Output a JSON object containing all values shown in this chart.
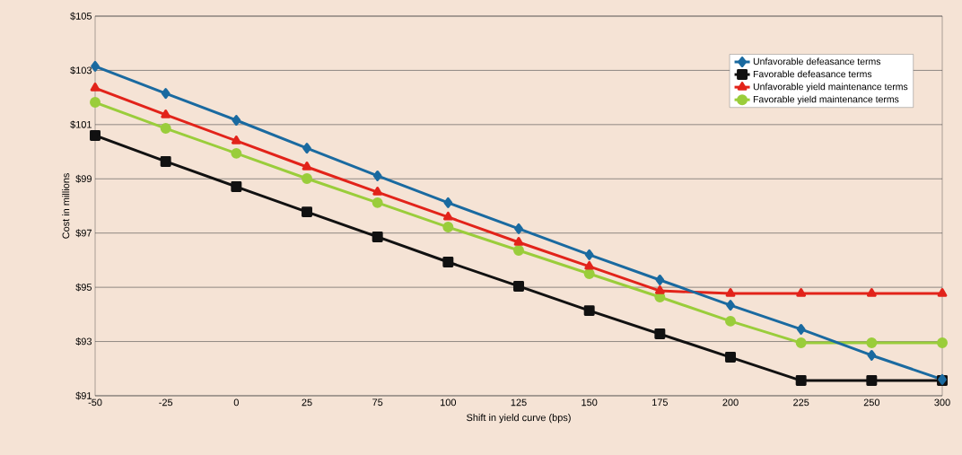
{
  "chart_data": {
    "type": "line",
    "xlabel": "Shift in yield curve (bps)",
    "ylabel": "Cost in millions",
    "categories": [
      "-50",
      "-25",
      "0",
      "25",
      "75",
      "100",
      "125",
      "150",
      "175",
      "200",
      "225",
      "250",
      "300"
    ],
    "ylim": [
      91,
      105
    ],
    "yticks": [
      {
        "value": 91,
        "label": "$91"
      },
      {
        "value": 93,
        "label": "$93"
      },
      {
        "value": 95,
        "label": "$95"
      },
      {
        "value": 97,
        "label": "$97"
      },
      {
        "value": 99,
        "label": "$99"
      },
      {
        "value": 101,
        "label": "$101"
      },
      {
        "value": 103,
        "label": "$103"
      },
      {
        "value": 105,
        "label": "$105"
      }
    ],
    "grid": "y",
    "legend": "top right",
    "line_style": "solid",
    "series": [
      {
        "name": "Unfavorable defeasance terms",
        "color": "#1a6aa0",
        "marker": "diamond",
        "values": [
          103.15,
          102.15,
          101.16,
          100.13,
          99.11,
          98.12,
          97.16,
          96.2,
          95.27,
          94.34,
          93.45,
          92.49,
          91.6
        ]
      },
      {
        "name": "Favorable defeasance terms",
        "color": "#111111",
        "marker": "square",
        "values": [
          100.6,
          99.64,
          98.71,
          97.78,
          96.86,
          95.93,
          95.04,
          94.14,
          93.28,
          92.42,
          91.56,
          91.56,
          91.56
        ]
      },
      {
        "name": "Unfavorable yield maintenance terms",
        "color": "#e2231a",
        "marker": "triangle",
        "values": [
          102.35,
          101.36,
          100.4,
          99.44,
          98.51,
          97.59,
          96.66,
          95.77,
          94.87,
          94.77,
          94.77,
          94.77,
          94.77
        ]
      },
      {
        "name": "Favorable yield maintenance terms",
        "color": "#9acd3b",
        "marker": "circle",
        "values": [
          101.82,
          100.86,
          99.94,
          99.01,
          98.12,
          97.22,
          96.36,
          95.5,
          94.64,
          93.75,
          92.95,
          92.95,
          92.95
        ]
      }
    ]
  }
}
